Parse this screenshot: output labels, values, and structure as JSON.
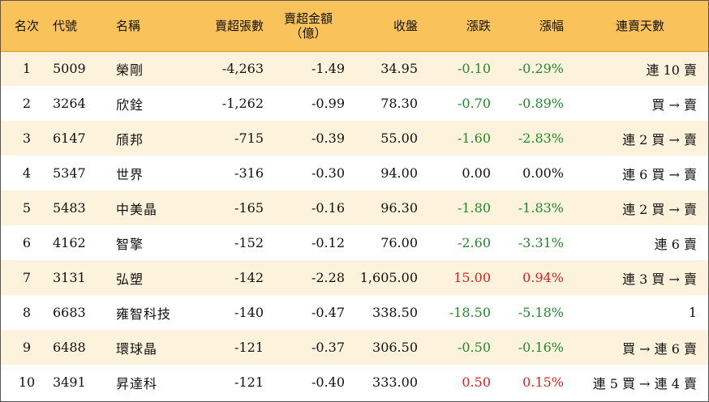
{
  "headers": {
    "rank": "名次",
    "code": "代號",
    "name": "名稱",
    "sell_excess_lots": "賣超張數",
    "sell_excess_amount_line1": "賣超金額",
    "sell_excess_amount_line2": "（億）",
    "close": "收盤",
    "change": "漲跌",
    "change_pct": "漲幅",
    "consecutive_days": "連賣天數"
  },
  "rows": [
    {
      "rank": "1",
      "code": "5009",
      "name": "榮剛",
      "lots": "-4,263",
      "amount": "-1.49",
      "close": "34.95",
      "change": "-0.10",
      "pct": "-0.29%",
      "trend": "down",
      "days": "連 10 賣"
    },
    {
      "rank": "2",
      "code": "3264",
      "name": "欣銓",
      "lots": "-1,262",
      "amount": "-0.99",
      "close": "78.30",
      "change": "-0.70",
      "pct": "-0.89%",
      "trend": "down",
      "days": "買 → 賣"
    },
    {
      "rank": "3",
      "code": "6147",
      "name": "頎邦",
      "lots": "-715",
      "amount": "-0.39",
      "close": "55.00",
      "change": "-1.60",
      "pct": "-2.83%",
      "trend": "down",
      "days": "連 2 買 → 賣"
    },
    {
      "rank": "4",
      "code": "5347",
      "name": "世界",
      "lots": "-316",
      "amount": "-0.30",
      "close": "94.00",
      "change": "0.00",
      "pct": "0.00%",
      "trend": "flat",
      "days": "連 6 買 → 賣"
    },
    {
      "rank": "5",
      "code": "5483",
      "name": "中美晶",
      "lots": "-165",
      "amount": "-0.16",
      "close": "96.30",
      "change": "-1.80",
      "pct": "-1.83%",
      "trend": "down",
      "days": "連 2 買 → 賣"
    },
    {
      "rank": "6",
      "code": "4162",
      "name": "智擎",
      "lots": "-152",
      "amount": "-0.12",
      "close": "76.00",
      "change": "-2.60",
      "pct": "-3.31%",
      "trend": "down",
      "days": "連 6 賣"
    },
    {
      "rank": "7",
      "code": "3131",
      "name": "弘塑",
      "lots": "-142",
      "amount": "-2.28",
      "close": "1,605.00",
      "change": "15.00",
      "pct": "0.94%",
      "trend": "up",
      "days": "連 3 買 → 賣"
    },
    {
      "rank": "8",
      "code": "6683",
      "name": "雍智科技",
      "lots": "-140",
      "amount": "-0.47",
      "close": "338.50",
      "change": "-18.50",
      "pct": "-5.18%",
      "trend": "down",
      "days": "1"
    },
    {
      "rank": "9",
      "code": "6488",
      "name": "環球晶",
      "lots": "-121",
      "amount": "-0.37",
      "close": "306.50",
      "change": "-0.50",
      "pct": "-0.16%",
      "trend": "down",
      "days": "買 → 連 6 賣"
    },
    {
      "rank": "10",
      "code": "3491",
      "name": "昇達科",
      "lots": "-121",
      "amount": "-0.40",
      "close": "333.00",
      "change": "0.50",
      "pct": "0.15%",
      "trend": "up",
      "days": "連 5 買 → 連 4 賣"
    }
  ],
  "colors": {
    "header_bg": "#f9c25b",
    "odd_row_bg": "#fdf3dd",
    "up": "#e0201b",
    "down": "#1f8a28"
  }
}
